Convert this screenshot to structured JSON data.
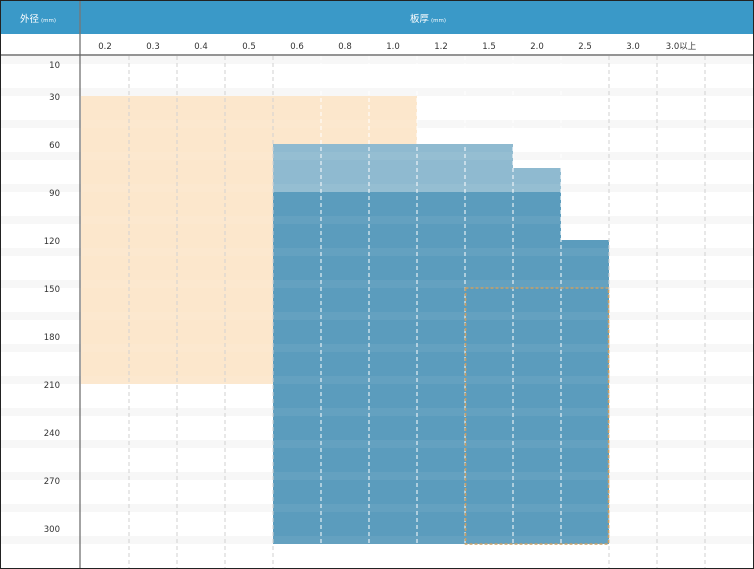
{
  "header": {
    "row_label": "外径",
    "row_unit": "(mm)",
    "col_label": "板厚",
    "col_unit": "(mm)"
  },
  "chart_data": {
    "type": "heatmap",
    "x_axis": {
      "label": "板厚",
      "unit": "(mm)",
      "categories": [
        "0.2",
        "0.3",
        "0.4",
        "0.5",
        "0.6",
        "0.8",
        "1.0",
        "1.2",
        "1.5",
        "2.0",
        "2.5",
        "3.0",
        "3.0以上"
      ]
    },
    "y_axis": {
      "label": "外径",
      "unit": "(mm)",
      "ticks": [
        10,
        30,
        60,
        90,
        120,
        150,
        180,
        210,
        240,
        270,
        300
      ],
      "range": [
        0,
        310
      ]
    },
    "regions": [
      {
        "id": "orange",
        "color": "#fce6c9",
        "opacity": 0.95,
        "x_from": "0.2",
        "x_to": "1.0",
        "y_from": 30,
        "y_to": 210
      },
      {
        "id": "light-blue",
        "color": "#8fbad0",
        "opacity": 1,
        "columns": [
          {
            "x": "0.6",
            "y_from": 60,
            "y_to": 90
          },
          {
            "x": "0.8",
            "y_from": 60,
            "y_to": 90
          },
          {
            "x": "1.0",
            "y_from": 60,
            "y_to": 90
          },
          {
            "x": "1.2",
            "y_from": 60,
            "y_to": 90
          },
          {
            "x": "1.5",
            "y_from": 60,
            "y_to": 90
          },
          {
            "x": "2.0",
            "y_from": 75,
            "y_to": 90
          }
        ]
      },
      {
        "id": "dark-blue",
        "color": "#5b9cbd",
        "opacity": 1,
        "columns": [
          {
            "x": "0.6",
            "y_from": 90,
            "y_to": 310
          },
          {
            "x": "0.8",
            "y_from": 90,
            "y_to": 310
          },
          {
            "x": "1.0",
            "y_from": 90,
            "y_to": 310
          },
          {
            "x": "1.2",
            "y_from": 90,
            "y_to": 310
          },
          {
            "x": "1.5",
            "y_from": 90,
            "y_to": 310
          },
          {
            "x": "2.0",
            "y_from": 90,
            "y_to": 310
          },
          {
            "x": "2.5",
            "y_from": 120,
            "y_to": 310
          }
        ]
      },
      {
        "id": "dashed-outline",
        "color": "#c9a066",
        "style": "dashed",
        "x_from": "1.5",
        "x_to": "2.5",
        "y_from": 150,
        "y_to": 310
      }
    ],
    "grid": true,
    "colors": {
      "header": "#3a99c8",
      "header_text": "#ffffff",
      "stripe": "#f7f7f7",
      "axis_line": "#888888"
    }
  }
}
